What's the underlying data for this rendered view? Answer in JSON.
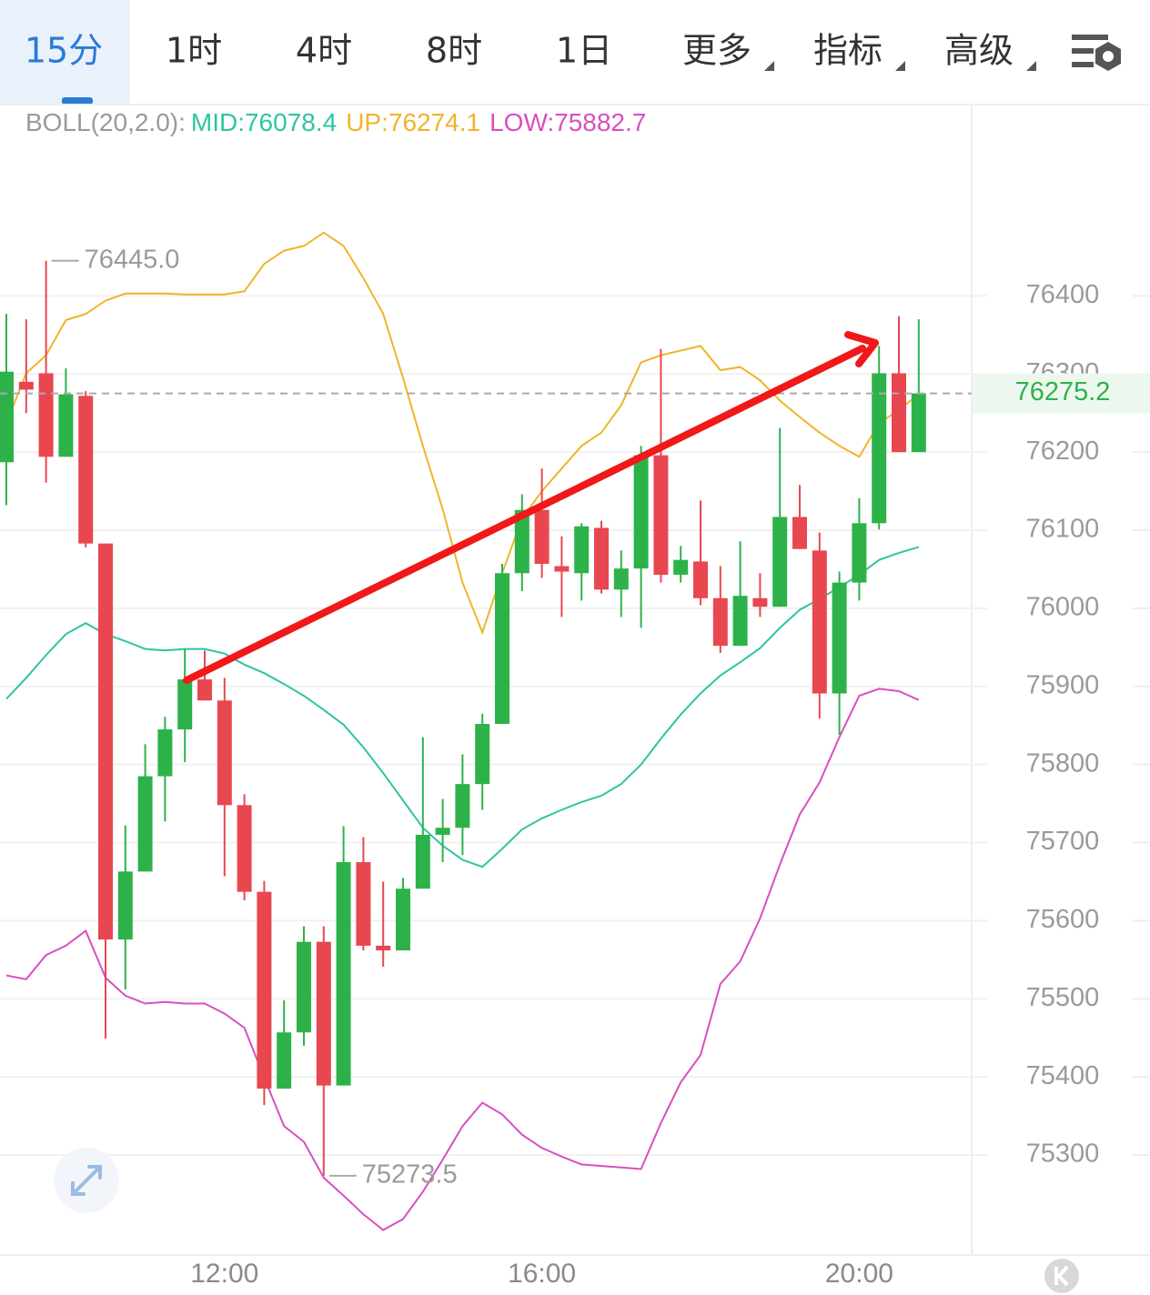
{
  "tabs": [
    "15分",
    "1时",
    "4时",
    "8时",
    "1日",
    "更多",
    "指标",
    "高级"
  ],
  "chart_data": {
    "type": "candlestick",
    "indicator": "BOLL(20,2.0):",
    "categories": [
      null,
      null,
      null,
      null,
      null,
      null,
      null,
      null,
      null,
      null,
      null,
      "12:00",
      null,
      null,
      null,
      null,
      null,
      null,
      null,
      null,
      null,
      null,
      null,
      null,
      null,
      null,
      null,
      "16:00",
      null,
      null,
      null,
      null,
      null,
      null,
      null,
      null,
      null,
      null,
      null,
      null,
      null,
      null,
      null,
      "20:00",
      null,
      null,
      null
    ],
    "open": [
      76187,
      76290,
      76301,
      76194,
      76272,
      76083,
      75576,
      75663,
      75785,
      75845,
      75909,
      75882,
      75748,
      75637,
      75385,
      75457,
      75573,
      75389,
      75675,
      75568,
      75562,
      75641,
      75710,
      75719,
      75775,
      75852,
      76045,
      76126,
      76054,
      76045,
      76103,
      76024,
      76051,
      76196,
      76043,
      76060,
      76013,
      75952,
      76013,
      76002,
      76117,
      76074,
      75891,
      76033,
      76109,
      76301,
      76200
    ],
    "high": [
      76377,
      76370,
      76445,
      76307,
      76278,
      76083,
      75722,
      75826,
      75861,
      75948,
      75946,
      75911,
      75762,
      75651,
      75498,
      75593,
      75593,
      75721,
      75707,
      75650,
      75655,
      75835,
      75756,
      75813,
      75865,
      76057,
      76146,
      76179,
      76092,
      76109,
      76112,
      76074,
      76208,
      76332,
      76080,
      76138,
      76054,
      76086,
      76045,
      76231,
      76158,
      76097,
      76047,
      76141,
      76336,
      76374,
      76370
    ],
    "low": [
      76132,
      76250,
      76161,
      76194,
      76078,
      75449,
      75512,
      75663,
      75727,
      75803,
      75882,
      75657,
      75626,
      75364,
      75385,
      75440,
      75273.5,
      75389,
      75562,
      75541,
      75562,
      75641,
      75675,
      75684,
      75742,
      75852,
      76022,
      76039,
      75989,
      76010,
      76019,
      75989,
      75975,
      76033,
      76033,
      76004,
      75943,
      75952,
      75989,
      76002,
      76076,
      75859,
      75838,
      76010,
      76101,
      76200,
      76200
    ],
    "close": [
      76303,
      76280,
      76194,
      76274,
      76083,
      75576,
      75663,
      75785,
      75845,
      75909,
      75882,
      75748,
      75637,
      75385,
      75457,
      75573,
      75389,
      75675,
      75568,
      75562,
      75641,
      75710,
      75719,
      75775,
      75852,
      76045,
      76126,
      76057,
      76047,
      76105,
      76024,
      76051,
      76196,
      76043,
      76062,
      76013,
      75952,
      76016,
      76002,
      76117,
      76076,
      75891,
      76033,
      76109,
      76301,
      76200,
      76275.2
    ],
    "up_color": "#2db24a",
    "down_color": "#e8474f",
    "series": [
      {
        "name": "MID:76078.4",
        "color": "#2ec4a3",
        "values": [
          75884,
          75911,
          75940,
          75967,
          75981,
          75967,
          75958,
          75948,
          75946,
          75948,
          75948,
          75942,
          75928,
          75917,
          75903,
          75888,
          75870,
          75851,
          75822,
          75789,
          75754,
          75719,
          75696,
          75678,
          75669,
          75692,
          75717,
          75731,
          75742,
          75752,
          75760,
          75775,
          75800,
          75833,
          75864,
          75891,
          75914,
          75931,
          75949,
          75975,
          75998,
          76012,
          76027,
          76043,
          76062,
          76071,
          76078.4
        ]
      },
      {
        "name": "UP:76274.1",
        "color": "#f0b429",
        "values": [
          76237,
          76301,
          76324,
          76369,
          76377,
          76394,
          76403,
          76403,
          76403,
          76402,
          76402,
          76402,
          76406,
          76441,
          76458,
          76464,
          76481,
          76464,
          76423,
          76377,
          76295,
          76208,
          76127,
          76033,
          75969,
          76045,
          76115,
          76150,
          76179,
          76208,
          76225,
          76260,
          76315,
          76324,
          76330,
          76336,
          76305,
          76309,
          76292,
          76266,
          76245,
          76225,
          76208,
          76194,
          76237,
          76254,
          76274.1
        ]
      },
      {
        "name": "LOW:75882.7",
        "color": "#d84fbf",
        "values": [
          75530,
          75525,
          75556,
          75568,
          75587,
          75527,
          75504,
          75494,
          75496,
          75494,
          75494,
          75481,
          75463,
          75399,
          75337,
          75317,
          75271,
          75248,
          75224,
          75204,
          75218,
          75253,
          75294,
          75337,
          75367,
          75352,
          75326,
          75309,
          75298,
          75288,
          75286,
          75284,
          75282,
          75341,
          75393,
          75428,
          75519,
          75548,
          75603,
          75672,
          75736,
          75777,
          75835,
          75888,
          75897,
          75894,
          75882.7
        ]
      }
    ],
    "ylim": [
      75172,
      76645
    ],
    "yticks": [
      75300,
      75400,
      75500,
      75600,
      75700,
      75800,
      75900,
      76000,
      76100,
      76200,
      76300,
      76400
    ],
    "grid": true,
    "high_label": {
      "value": 76445,
      "label": "76445.0"
    },
    "low_label": {
      "value": 75273.5,
      "label": "75273.5"
    },
    "last_price": 76275.2
  }
}
